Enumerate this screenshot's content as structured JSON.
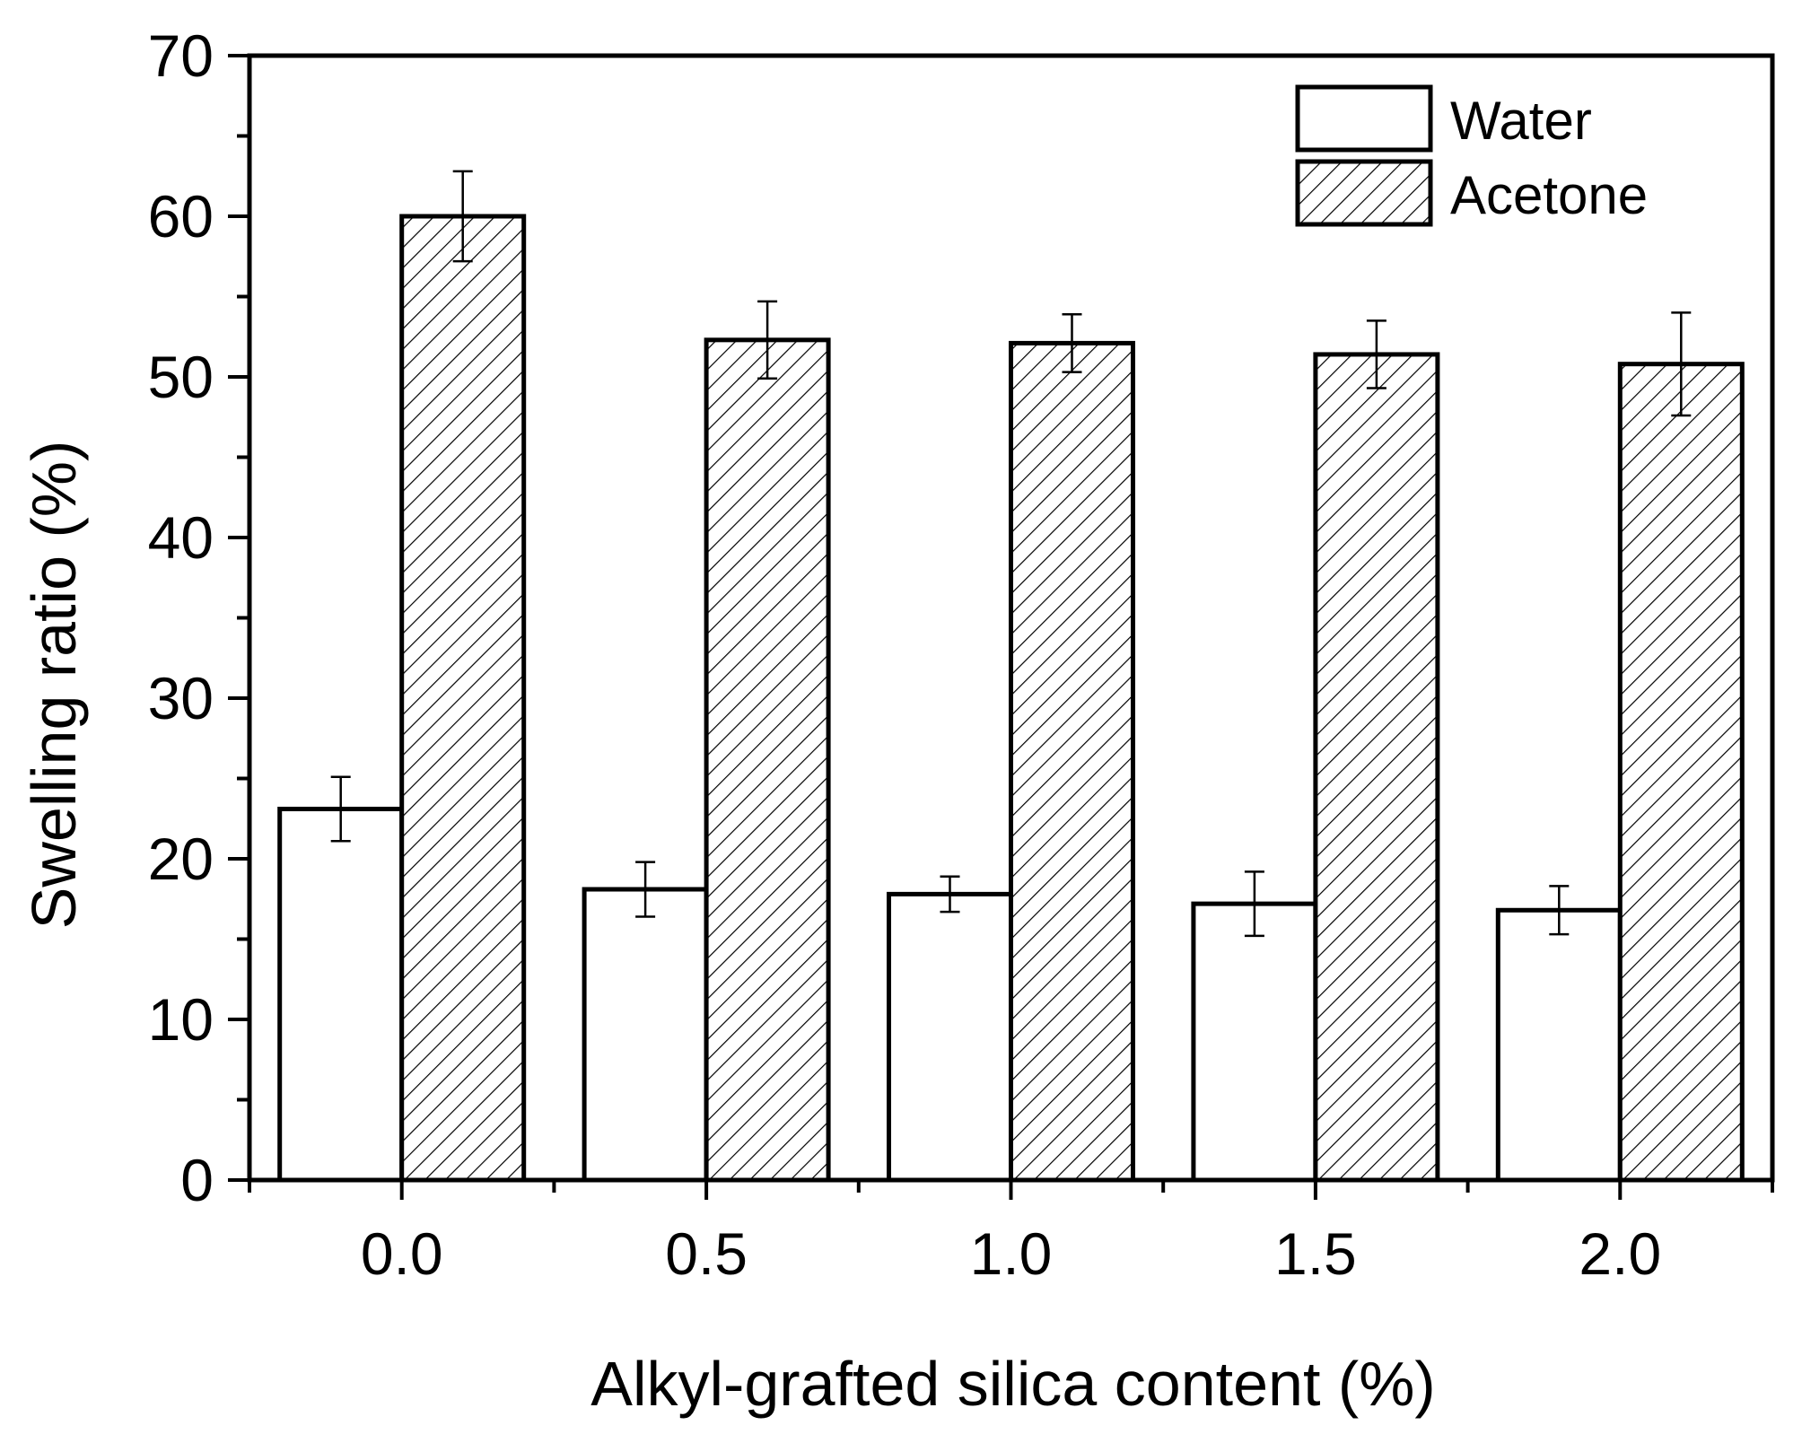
{
  "chart_data": {
    "type": "bar",
    "title": "",
    "xlabel": "Alkyl-grafted silica content (%)",
    "ylabel": "Swelling ratio (%)",
    "categories": [
      "0.0",
      "0.5",
      "1.0",
      "1.5",
      "2.0"
    ],
    "ylim": [
      0,
      70
    ],
    "yticks": [
      "0",
      "10",
      "20",
      "30",
      "40",
      "50",
      "60",
      "70"
    ],
    "legend_position": "top-right",
    "grid": false,
    "series": [
      {
        "name": "Water",
        "fill": "none",
        "values": [
          23.1,
          18.1,
          17.8,
          17.2,
          16.8
        ],
        "errors": [
          2.0,
          1.7,
          1.1,
          2.0,
          1.5
        ]
      },
      {
        "name": "Acetone",
        "fill": "hatched",
        "values": [
          60.0,
          52.3,
          52.1,
          51.4,
          50.8
        ],
        "errors": [
          2.8,
          2.4,
          1.8,
          2.1,
          3.2
        ]
      }
    ],
    "colors": {
      "stroke": "#000000",
      "background": "#ffffff"
    }
  }
}
